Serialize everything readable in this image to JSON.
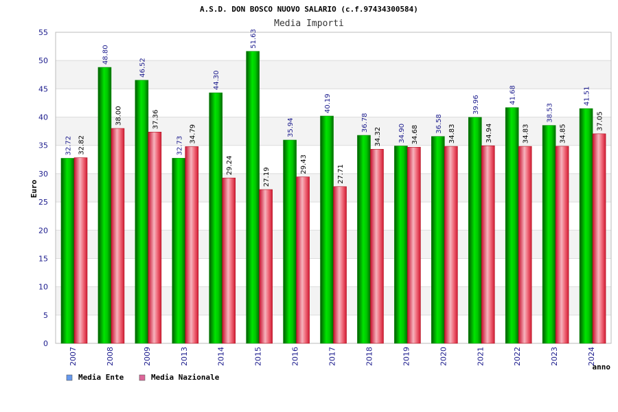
{
  "chart_data": {
    "type": "bar",
    "title": "A.S.D. DON BOSCO NUOVO SALARIO (c.f.97434300584)",
    "subtitle": "Media Importi",
    "ylabel": "Euro",
    "xlabel": "anno",
    "ylim": [
      0,
      55
    ],
    "yticks": [
      0,
      5,
      10,
      15,
      20,
      25,
      30,
      35,
      40,
      45,
      50,
      55
    ],
    "grid": true,
    "legend_position": "bottom-left",
    "categories": [
      "2007",
      "2008",
      "2009",
      "2013",
      "2014",
      "2015",
      "2016",
      "2017",
      "2018",
      "2019",
      "2020",
      "2021",
      "2022",
      "2023",
      "2024"
    ],
    "series": [
      {
        "name": "Media Ente",
        "color": "#00c000",
        "legend_color": "#6699ee",
        "label_color": "#1a1a8c",
        "values": [
          32.72,
          48.8,
          46.52,
          32.73,
          44.3,
          51.63,
          35.94,
          40.19,
          36.78,
          34.9,
          36.58,
          39.96,
          41.68,
          38.53,
          41.51
        ],
        "labels": [
          "32.72",
          "48.80",
          "46.52",
          "32.73",
          "44.30",
          "51.63",
          "35.94",
          "40.19",
          "36.78",
          "34.90",
          "36.58",
          "39.96",
          "41.68",
          "38.53",
          "41.51"
        ]
      },
      {
        "name": "Media Nazionale",
        "color": "#e8253a",
        "legend_color": "#dd6699",
        "label_color": "#000000",
        "values": [
          32.82,
          38.0,
          37.36,
          34.79,
          29.24,
          27.19,
          29.43,
          27.71,
          34.32,
          34.68,
          34.83,
          34.94,
          34.83,
          34.85,
          37.05
        ],
        "labels": [
          "32.82",
          "38.00",
          "37.36",
          "34.79",
          "29.24",
          "27.19",
          "29.43",
          "27.71",
          "34.32",
          "34.68",
          "34.83",
          "34.94",
          "34.83",
          "34.85",
          "37.05"
        ]
      }
    ]
  }
}
